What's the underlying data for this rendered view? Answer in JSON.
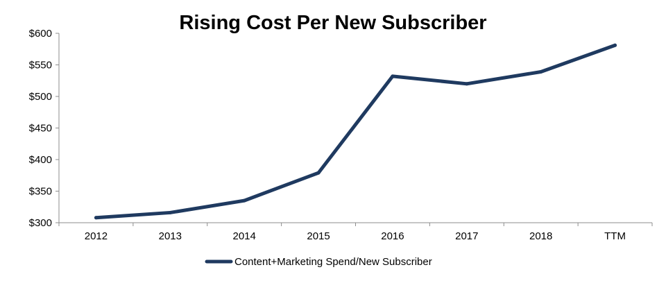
{
  "chart_data": {
    "type": "line",
    "title": "Rising Cost Per New Subscriber",
    "xlabel": "",
    "ylabel": "",
    "categories": [
      "2012",
      "2013",
      "2014",
      "2015",
      "2016",
      "2017",
      "2018",
      "TTM"
    ],
    "series": [
      {
        "name": "Content+Marketing Spend/New Subscriber",
        "values": [
          308,
          316,
          335,
          379,
          532,
          520,
          539,
          581
        ],
        "color": "#1f3a60"
      }
    ],
    "ylim": [
      300,
      600
    ],
    "y_ticks": [
      300,
      350,
      400,
      450,
      500,
      550,
      600
    ],
    "y_tick_labels": [
      "$300",
      "$350",
      "$400",
      "$450",
      "$500",
      "$550",
      "$600"
    ],
    "grid": false,
    "legend_position": "bottom",
    "axis_color": "#8c8c8c"
  }
}
